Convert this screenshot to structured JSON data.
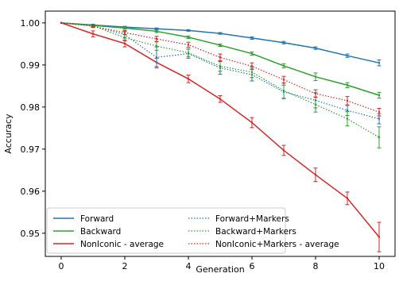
{
  "chart_data": {
    "type": "line",
    "title": "",
    "xlabel": "Generation",
    "ylabel": "Accuracy",
    "xlim": [
      -0.5,
      10.5
    ],
    "ylim": [
      0.9445,
      1.0028
    ],
    "x_ticks": [
      0,
      2,
      4,
      6,
      8,
      10
    ],
    "x_tick_labels": [
      "0",
      "2",
      "4",
      "6",
      "8",
      "10"
    ],
    "y_ticks": [
      0.95,
      0.96,
      0.97,
      0.98,
      0.99,
      1.0
    ],
    "y_tick_labels": [
      "0.95",
      "0.96",
      "0.97",
      "0.98",
      "0.99",
      "1.00"
    ],
    "grid": false,
    "legend_position": "lower-left",
    "x": [
      0,
      1,
      2,
      3,
      4,
      5,
      6,
      7,
      8,
      9,
      10
    ],
    "series": [
      {
        "name": "Forward",
        "color": "#1f77b4",
        "style": "solid",
        "values": [
          1.0,
          0.9995,
          0.999,
          0.9986,
          0.9982,
          0.9975,
          0.9964,
          0.9953,
          0.994,
          0.9922,
          0.9905
        ],
        "errors": [
          0.0,
          0.0002,
          0.0002,
          0.0002,
          0.0002,
          0.0002,
          0.0003,
          0.0003,
          0.0003,
          0.0004,
          0.0007
        ]
      },
      {
        "name": "Backward",
        "color": "#2ca02c",
        "style": "solid",
        "values": [
          1.0,
          0.9994,
          0.9988,
          0.998,
          0.9966,
          0.9947,
          0.9927,
          0.9898,
          0.9872,
          0.9852,
          0.9828
        ],
        "errors": [
          0.0,
          0.0002,
          0.0003,
          0.0003,
          0.0003,
          0.0003,
          0.0004,
          0.0005,
          0.0009,
          0.0006,
          0.0007
        ]
      },
      {
        "name": "NonIconic - average",
        "color": "#d62728",
        "style": "solid",
        "values": [
          1.0,
          0.9974,
          0.9951,
          0.9906,
          0.9867,
          0.9819,
          0.9763,
          0.9697,
          0.9639,
          0.9583,
          0.9491
        ],
        "errors": [
          0.0,
          0.0007,
          0.0008,
          0.001,
          0.0009,
          0.0008,
          0.0012,
          0.0012,
          0.0016,
          0.0015,
          0.0035
        ]
      },
      {
        "name": "Forward+Markers",
        "color": "#1f77b4",
        "style": "dotted",
        "values": [
          1.0,
          0.9993,
          0.9972,
          0.9918,
          0.9927,
          0.9893,
          0.9877,
          0.9836,
          0.9816,
          0.9792,
          0.9772
        ],
        "errors": [
          0.0,
          0.0003,
          0.0008,
          0.0025,
          0.0011,
          0.0015,
          0.0015,
          0.0016,
          0.0018,
          0.0012,
          0.0012
        ]
      },
      {
        "name": "Backward+Markers",
        "color": "#2ca02c",
        "style": "dotted",
        "values": [
          1.0,
          0.9993,
          0.9965,
          0.9945,
          0.9929,
          0.9897,
          0.9883,
          0.9839,
          0.9806,
          0.9772,
          0.9728
        ],
        "errors": [
          0.0,
          0.0003,
          0.0008,
          0.001,
          0.0009,
          0.0012,
          0.0013,
          0.0018,
          0.0018,
          0.0017,
          0.0025
        ]
      },
      {
        "name": "NonIconic+Markers - average",
        "color": "#d62728",
        "style": "dotted",
        "values": [
          1.0,
          0.9992,
          0.9977,
          0.9962,
          0.9948,
          0.9918,
          0.9897,
          0.9865,
          0.9832,
          0.9815,
          0.9788
        ],
        "errors": [
          0.0,
          0.0003,
          0.0005,
          0.0006,
          0.0006,
          0.0008,
          0.0008,
          0.0008,
          0.0009,
          0.001,
          0.0009
        ]
      }
    ]
  }
}
